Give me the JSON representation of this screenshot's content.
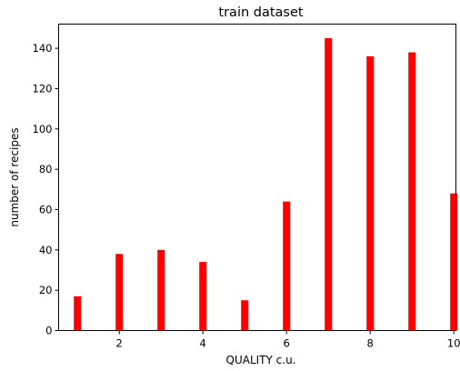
{
  "chart_data": {
    "type": "bar",
    "title": "train dataset",
    "xlabel": "QUALITY c.u.",
    "ylabel": "number of recipes",
    "x": [
      1,
      2,
      3,
      4,
      5,
      6,
      7,
      8,
      9,
      10
    ],
    "values": [
      17,
      38,
      40,
      34,
      15,
      64,
      145,
      136,
      138,
      68
    ],
    "xticks": [
      2,
      4,
      6,
      8,
      10
    ],
    "yticks": [
      0,
      20,
      40,
      60,
      80,
      100,
      120,
      140
    ],
    "xlim": [
      0.55,
      10.05
    ],
    "ylim": [
      0,
      152
    ],
    "bar_color": "#ff0000",
    "grid": false,
    "legend": "none"
  }
}
